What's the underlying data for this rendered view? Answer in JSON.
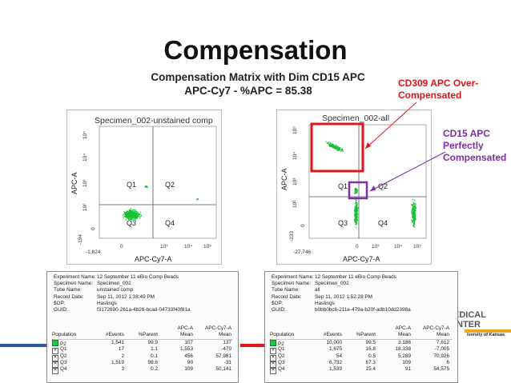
{
  "slide": {
    "title": "Compensation",
    "subtitle_line1": "Compensation Matrix with Dim CD15 APC",
    "subtitle_line2": "APC-Cy7 - %APC = 85.38",
    "note_red": "CD309 APC Over-\nCompensated",
    "note_purple": "CD15 APC\nPerfectly\nCompensated",
    "colors": {
      "red": "#e0141b",
      "purple": "#7b2fa3",
      "green": "#19c038",
      "blue_bar": "#2a55a8",
      "gold_bar": "#f0a818"
    },
    "logo": {
      "left": "EDICAL",
      "left2": "NTER",
      "sub": "iversity of Kansas"
    }
  },
  "plots": [
    {
      "title": "Specimen_002-unstained comp",
      "ylabel": "APC-A",
      "xlabel": "APC-Cy7-A",
      "y_ticks": [
        "10⁵",
        "10⁴",
        "10³",
        "10²",
        "0",
        "-194"
      ],
      "x_ticks": [
        "-1,824",
        "0",
        "10³",
        "10⁴",
        "10⁵"
      ],
      "quadrants": [
        "Q1",
        "Q2",
        "Q3",
        "Q4"
      ]
    },
    {
      "title": "Specimen_002-all",
      "ylabel": "APC-A",
      "xlabel": "APC-Cy7-A",
      "y_ticks": [
        "10⁵",
        "10⁴",
        "10³",
        "10²",
        "0",
        "-233"
      ],
      "x_ticks": [
        "-27,746",
        "0",
        "10³",
        "10⁴",
        "10⁵"
      ],
      "quadrants": [
        "Q1",
        "Q2",
        "Q3",
        "Q4"
      ]
    }
  ],
  "tables": [
    {
      "meta": [
        {
          "k": "Experiment Name:",
          "v": "12 September 11 eBio Comp Beads"
        },
        {
          "k": "Specimen Name:",
          "v": "Specimen_002"
        },
        {
          "k": "Tube Name:",
          "v": "unstained comp"
        },
        {
          "k": "Record Date:",
          "v": "Sep 11, 2012 1:38:49 PM"
        },
        {
          "k": "$OP:",
          "v": "Hastings"
        },
        {
          "k": "GUID:",
          "v": "f3172690-261a-4b26-bcad-04733f40f81a"
        }
      ],
      "col_top": [
        "",
        "",
        "",
        "APC-A",
        "APC-Cy7-A"
      ],
      "headers": [
        "Population",
        "#Events",
        "%Parent",
        "Mean",
        "Mean"
      ],
      "rows": [
        [
          "P2",
          "1,541",
          "99.9",
          "107",
          "137"
        ],
        [
          "Q1",
          "17",
          "1.1",
          "1,553",
          "-470"
        ],
        [
          "Q2",
          "2",
          "0.1",
          "456",
          "57,981"
        ],
        [
          "Q3",
          "1,519",
          "98.6",
          "90",
          "-31"
        ],
        [
          "Q4",
          "3",
          "0.2",
          "109",
          "50,141"
        ]
      ]
    },
    {
      "meta": [
        {
          "k": "Experiment Name:",
          "v": "12 September 11 eBio Comp Beads"
        },
        {
          "k": "Specimen Name:",
          "v": "Specimen_002"
        },
        {
          "k": "Tube Name:",
          "v": "all"
        },
        {
          "k": "Record Date:",
          "v": "Sep 11, 2012 1:52:28 PM"
        },
        {
          "k": "$OP:",
          "v": "Hastings"
        },
        {
          "k": "GUID:",
          "v": "b0bb0bc6-211e-479a-b20f-adb10dd2398a"
        }
      ],
      "col_top": [
        "",
        "",
        "",
        "APC-A",
        "APC-Cy7-A"
      ],
      "headers": [
        "Population",
        "#Events",
        "%Parent",
        "Mean",
        "Mean"
      ],
      "rows": [
        [
          "P2",
          "10,000",
          "99.5",
          "3,186",
          "7,612"
        ],
        [
          "Q1",
          "1,675",
          "16.8",
          "18,338",
          "-7,005"
        ],
        [
          "Q2",
          "54",
          "0.5",
          "5,289",
          "70,926"
        ],
        [
          "Q3",
          "6,732",
          "67.3",
          "109",
          "6"
        ],
        [
          "Q4",
          "1,539",
          "15.4",
          "91",
          "54,575"
        ]
      ]
    }
  ]
}
